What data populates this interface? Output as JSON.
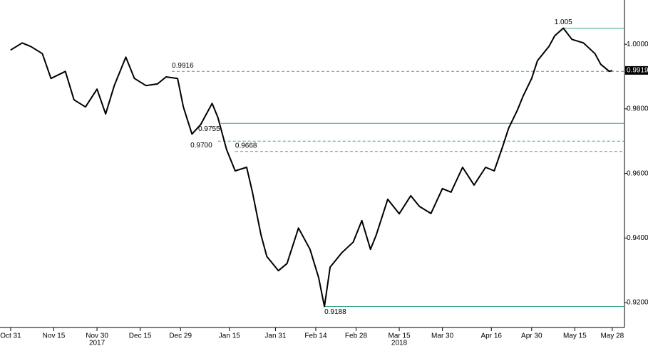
{
  "chart_data": {
    "type": "line",
    "x": [
      0,
      4,
      7,
      11,
      14,
      19,
      22,
      26,
      30,
      33,
      36,
      40,
      43,
      47,
      51,
      54,
      58,
      60,
      63,
      66,
      70,
      72,
      75,
      78,
      82,
      84,
      87,
      89,
      93,
      96,
      100,
      104,
      107,
      109,
      111,
      115,
      119,
      122,
      125,
      127,
      131,
      135,
      139,
      142,
      146,
      150,
      153,
      157,
      161,
      165,
      168,
      171,
      173,
      176,
      178,
      181,
      183,
      187,
      189,
      192,
      195,
      199,
      203,
      205,
      208,
      209
    ],
    "series": [
      {
        "color": "#000000",
        "values": [
          0.9982,
          1.0004,
          0.9993,
          0.9971,
          0.9894,
          0.9916,
          0.9828,
          0.9806,
          0.9861,
          0.9784,
          0.9872,
          0.996,
          0.9894,
          0.9872,
          0.9877,
          0.9899,
          0.9894,
          0.9806,
          0.9722,
          0.9751,
          0.9817,
          0.9773,
          0.9674,
          0.9608,
          0.9619,
          0.9542,
          0.9409,
          0.9343,
          0.9299,
          0.9321,
          0.9431,
          0.9365,
          0.9277,
          0.9188,
          0.931,
          0.9354,
          0.9387,
          0.9454,
          0.9365,
          0.9409,
          0.952,
          0.9475,
          0.9531,
          0.9498,
          0.9476,
          0.9553,
          0.9542,
          0.9619,
          0.9564,
          0.9619,
          0.9608,
          0.9685,
          0.974,
          0.9795,
          0.9839,
          0.9894,
          0.9949,
          0.9993,
          1.0026,
          1.005,
          1.0015,
          1.0004,
          0.9971,
          0.9938,
          0.9916,
          0.9919
        ]
      }
    ],
    "xlim": [
      -3.7,
      213
    ],
    "xticks": [
      {
        "value": 0,
        "label": "Oct 31"
      },
      {
        "value": 15,
        "label": "Nov 15"
      },
      {
        "value": 30,
        "label": "Nov 30"
      },
      {
        "value": 45,
        "label": "Dec 15"
      },
      {
        "value": 59,
        "label": "Dec 29"
      },
      {
        "value": 76,
        "label": "Jan 15"
      },
      {
        "value": 92,
        "label": "Jan 31"
      },
      {
        "value": 106,
        "label": "Feb 14"
      },
      {
        "value": 120,
        "label": "Feb 28"
      },
      {
        "value": 135,
        "label": "Mar 15"
      },
      {
        "value": 150,
        "label": "Mar 30"
      },
      {
        "value": 167,
        "label": "Apr 16"
      },
      {
        "value": 181,
        "label": "Apr 30"
      },
      {
        "value": 196,
        "label": "May 15"
      },
      {
        "value": 209,
        "label": "May 28"
      }
    ],
    "year_labels": [
      {
        "value": 30,
        "label": "2017"
      },
      {
        "value": 135,
        "label": "2018"
      }
    ],
    "ylim": [
      0.9123,
      1.0137
    ],
    "yticks": [
      {
        "value": 0.92,
        "label": "0.9200"
      },
      {
        "value": 0.94,
        "label": "0.9400"
      },
      {
        "value": 0.96,
        "label": "0.9600"
      },
      {
        "value": 0.98,
        "label": "0.9800"
      },
      {
        "value": 1.0,
        "label": "1.0000"
      }
    ],
    "levels": [
      {
        "value": 1.005,
        "x": 192,
        "dashed": false,
        "label_side": "above"
      },
      {
        "value": 0.9916,
        "label": "0.9916",
        "x": 56,
        "dashed": true,
        "label_side": "above"
      },
      {
        "value": 0.9755,
        "label": "0.9755",
        "x": 73,
        "dashed": false,
        "label_side": "left"
      },
      {
        "value": 0.97,
        "label": "0.9700",
        "x": 72,
        "dashed": true,
        "label_side": "below-left"
      },
      {
        "value": 0.9668,
        "label": "0.9668",
        "x": 78,
        "dashed": true,
        "label_side": "above"
      },
      {
        "value": 0.9188,
        "x": 109,
        "dashed": false,
        "label_side": "below"
      }
    ],
    "level_color": "#3aa58a",
    "last_price": {
      "value": 0.9919,
      "label": "0.9919"
    }
  }
}
